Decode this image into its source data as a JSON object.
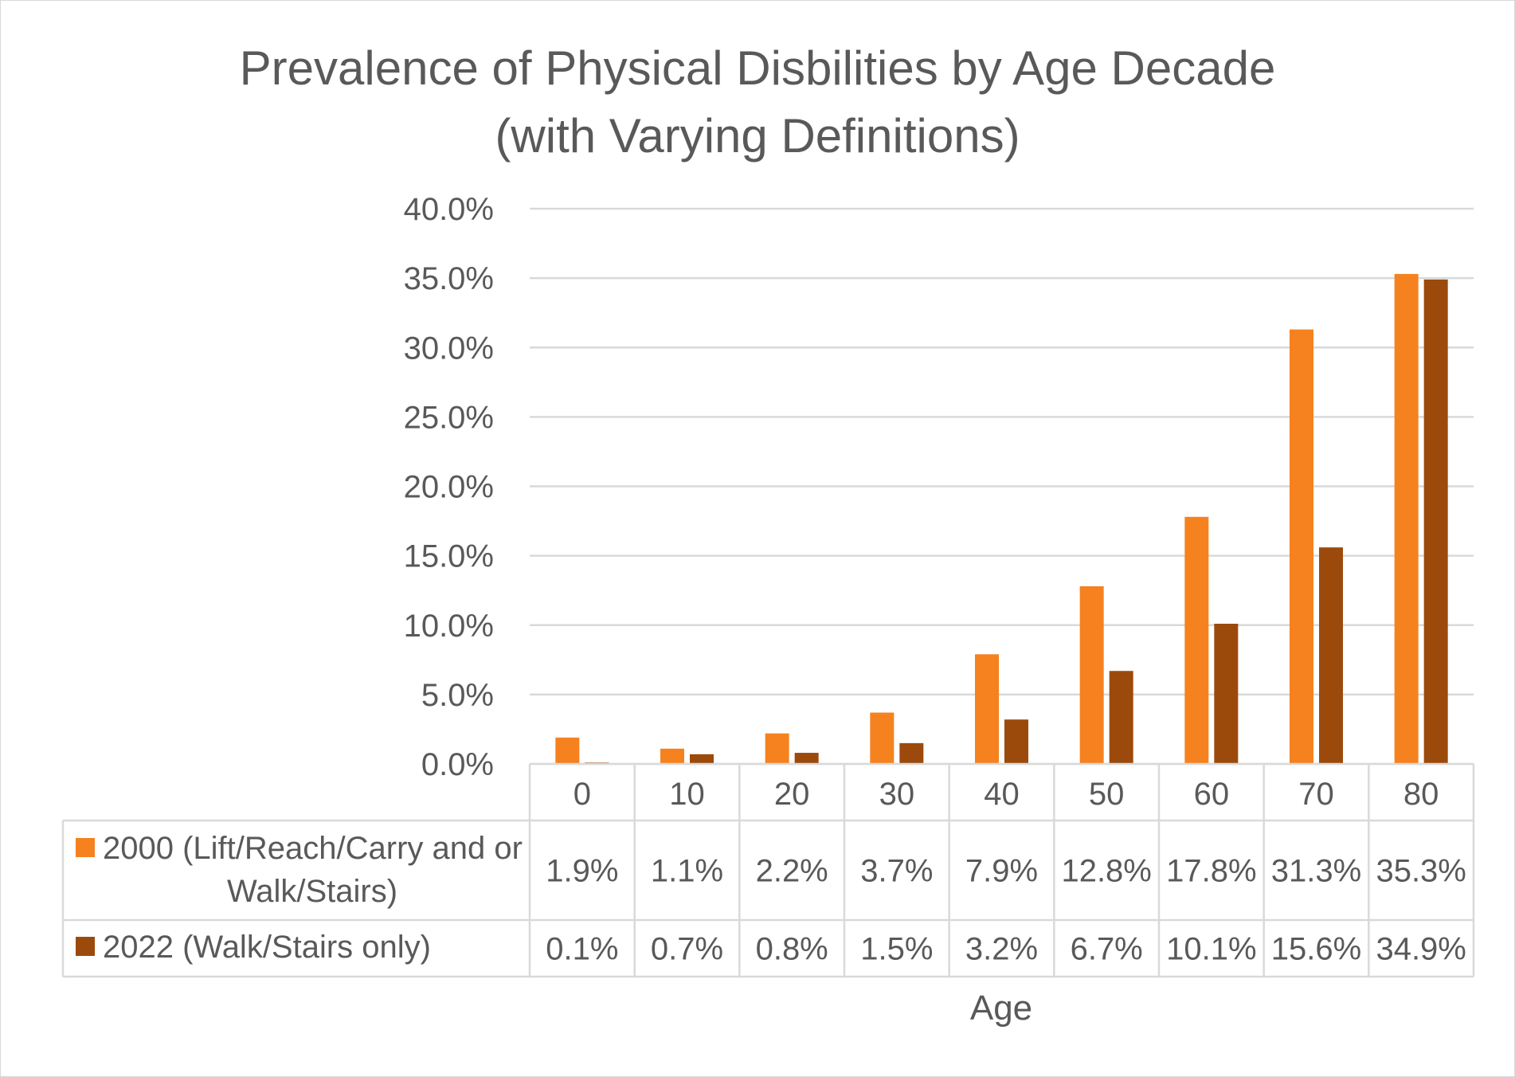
{
  "chart_data": {
    "type": "bar",
    "title_line1": "Prevalence of Physical Disbilities by Age Decade",
    "title_line2": "(with Varying Definitions)",
    "xlabel": "Age",
    "ylabel": "",
    "ylim": [
      0,
      40
    ],
    "y_ticks": [
      "0.0%",
      "5.0%",
      "10.0%",
      "15.0%",
      "20.0%",
      "25.0%",
      "30.0%",
      "35.0%",
      "40.0%"
    ],
    "categories": [
      "0",
      "10",
      "20",
      "30",
      "40",
      "50",
      "60",
      "70",
      "80"
    ],
    "grid": true,
    "legend_placement": "data-table",
    "series": [
      {
        "name_line1": "2000 (Lift/Reach/Carry and or",
        "name_line2": "Walk/Stairs)",
        "color": "#f5821f",
        "values": [
          1.9,
          1.1,
          2.2,
          3.7,
          7.9,
          12.8,
          17.8,
          31.3,
          35.3
        ],
        "labels": [
          "1.9%",
          "1.1%",
          "2.2%",
          "3.7%",
          "7.9%",
          "12.8%",
          "17.8%",
          "31.3%",
          "35.3%"
        ]
      },
      {
        "name_line1": "2022 (Walk/Stairs only)",
        "name_line2": "",
        "color": "#9c4a0c",
        "values": [
          0.1,
          0.7,
          0.8,
          1.5,
          3.2,
          6.7,
          10.1,
          15.6,
          34.9
        ],
        "labels": [
          "0.1%",
          "0.7%",
          "0.8%",
          "1.5%",
          "3.2%",
          "6.7%",
          "10.1%",
          "15.6%",
          "34.9%"
        ]
      }
    ]
  }
}
